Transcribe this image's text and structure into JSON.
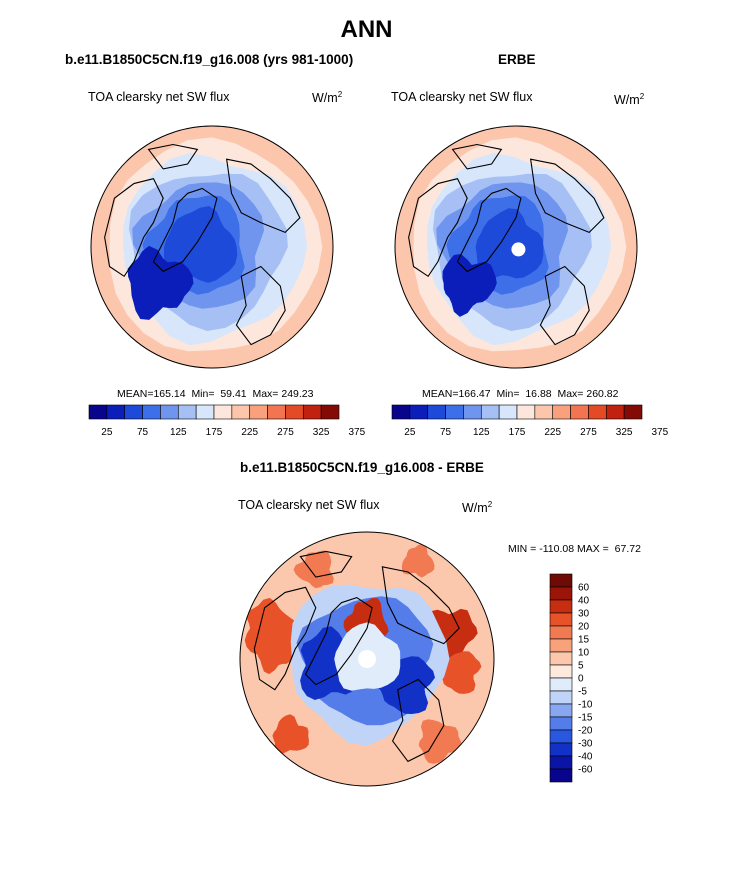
{
  "page_title": "ANN",
  "colors": {
    "abs_scale": [
      "#08048c",
      "#0b1eb9",
      "#1e4ad9",
      "#3d6fe8",
      "#6f95ef",
      "#a6c0f5",
      "#d7e6fa",
      "#fde7dc",
      "#fcc6ad",
      "#f9a07c",
      "#f27450",
      "#e34a26",
      "#c0220f",
      "#840a06"
    ],
    "diff_scale": [
      "#08048c",
      "#0a14a6",
      "#1231c6",
      "#2a57e0",
      "#557de9",
      "#89a7f1",
      "#c0d4f7",
      "#e1ecfb",
      "#fde9dd",
      "#fbc8ae",
      "#f8a27c",
      "#f27a52",
      "#e85229",
      "#c72d11",
      "#9a1508",
      "#6e0b04"
    ],
    "land_outline": "#000000"
  },
  "chart_data": [
    {
      "type": "heatmap",
      "projection": "north-polar-stereographic",
      "case_title": "b.e11.B1850C5CN.f19_g16.008 (yrs 981-1000)",
      "title": "TOA clearsky net SW flux",
      "units": "W/m",
      "units_exp": "2",
      "stats": {
        "mean_label": "MEAN=",
        "mean": "165.14",
        "min_label": "Min=",
        "min": "59.41",
        "max_label": "Max=",
        "max": "249.23"
      },
      "colorbar": {
        "levels": [
          25,
          50,
          75,
          100,
          125,
          150,
          175,
          200,
          225,
          250,
          275,
          300,
          325,
          350,
          375
        ],
        "tick_labels": [
          "25",
          "75",
          "125",
          "175",
          "225",
          "275",
          "325",
          "375"
        ]
      }
    },
    {
      "type": "heatmap",
      "projection": "north-polar-stereographic",
      "case_title": "ERBE",
      "title": "TOA clearsky net SW flux",
      "units": "W/m",
      "units_exp": "2",
      "stats": {
        "mean_label": "MEAN=",
        "mean": "166.47",
        "min_label": "Min=",
        "min": "16.88",
        "max_label": "Max=",
        "max": "260.82"
      },
      "colorbar": {
        "levels": [
          25,
          50,
          75,
          100,
          125,
          150,
          175,
          200,
          225,
          250,
          275,
          300,
          325,
          350,
          375
        ],
        "tick_labels": [
          "25",
          "75",
          "125",
          "175",
          "225",
          "275",
          "325",
          "375"
        ]
      }
    },
    {
      "type": "heatmap",
      "projection": "north-polar-stereographic",
      "case_title": "b.e11.B1850C5CN.f19_g16.008 - ERBE",
      "title": "TOA clearsky net SW flux",
      "units": "W/m",
      "units_exp": "2",
      "stats": {
        "min_label": "MIN =",
        "min": "-110.08",
        "max_label": "MAX =",
        "max": "67.72"
      },
      "colorbar": {
        "tick_labels": [
          "60",
          "40",
          "30",
          "20",
          "15",
          "10",
          "5",
          "0",
          "-5",
          "-10",
          "-15",
          "-20",
          "-30",
          "-40",
          "-60"
        ]
      }
    }
  ]
}
